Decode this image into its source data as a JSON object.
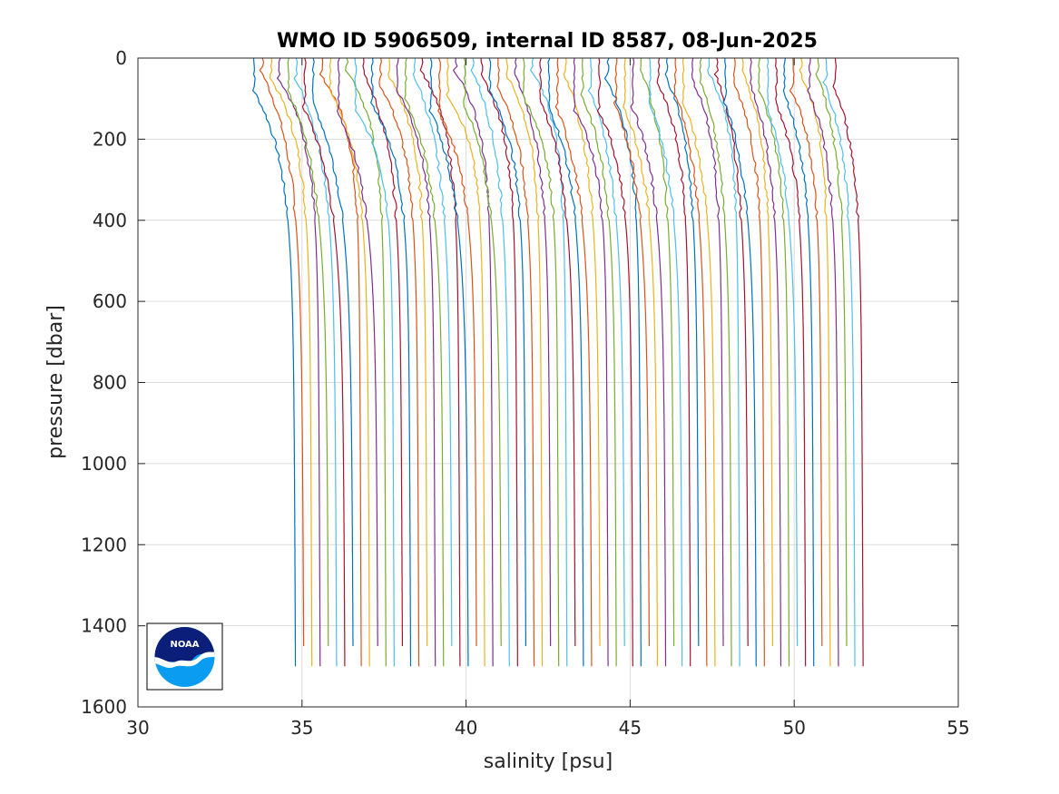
{
  "chart_data": {
    "type": "line",
    "title": "WMO ID 5906509, internal ID 8587, 08-Jun-2025",
    "xlabel": "salinity [psu]",
    "ylabel": "pressure [dbar]",
    "xlim": [
      30,
      55
    ],
    "ylim": [
      0,
      1600
    ],
    "y_reversed": true,
    "grid": true,
    "xticks": [
      "30",
      "35",
      "40",
      "45",
      "50",
      "55"
    ],
    "yticks": [
      "0",
      "200",
      "400",
      "600",
      "800",
      "1000",
      "1200",
      "1400",
      "1600"
    ],
    "colors": [
      "#0072BD",
      "#D95319",
      "#EDB120",
      "#7E2F8E",
      "#77AC30",
      "#4DBEEE",
      "#A2142F"
    ],
    "series_description": "Waterfall of salinity profiles; each profile offset in salinity from the previous one",
    "profiles": {
      "count": 70,
      "first_deep_salinity": 34.8,
      "last_deep_salinity": 52.1,
      "surface_offset_shallow": 0.85,
      "bottom_pressures": [
        1500,
        1450
      ]
    }
  },
  "logo": {
    "name": "noaa-logo",
    "text": "NOAA",
    "colors": {
      "top": "#0a1e7a",
      "bottom": "#0a9cf0",
      "band": "#ffffff"
    }
  }
}
